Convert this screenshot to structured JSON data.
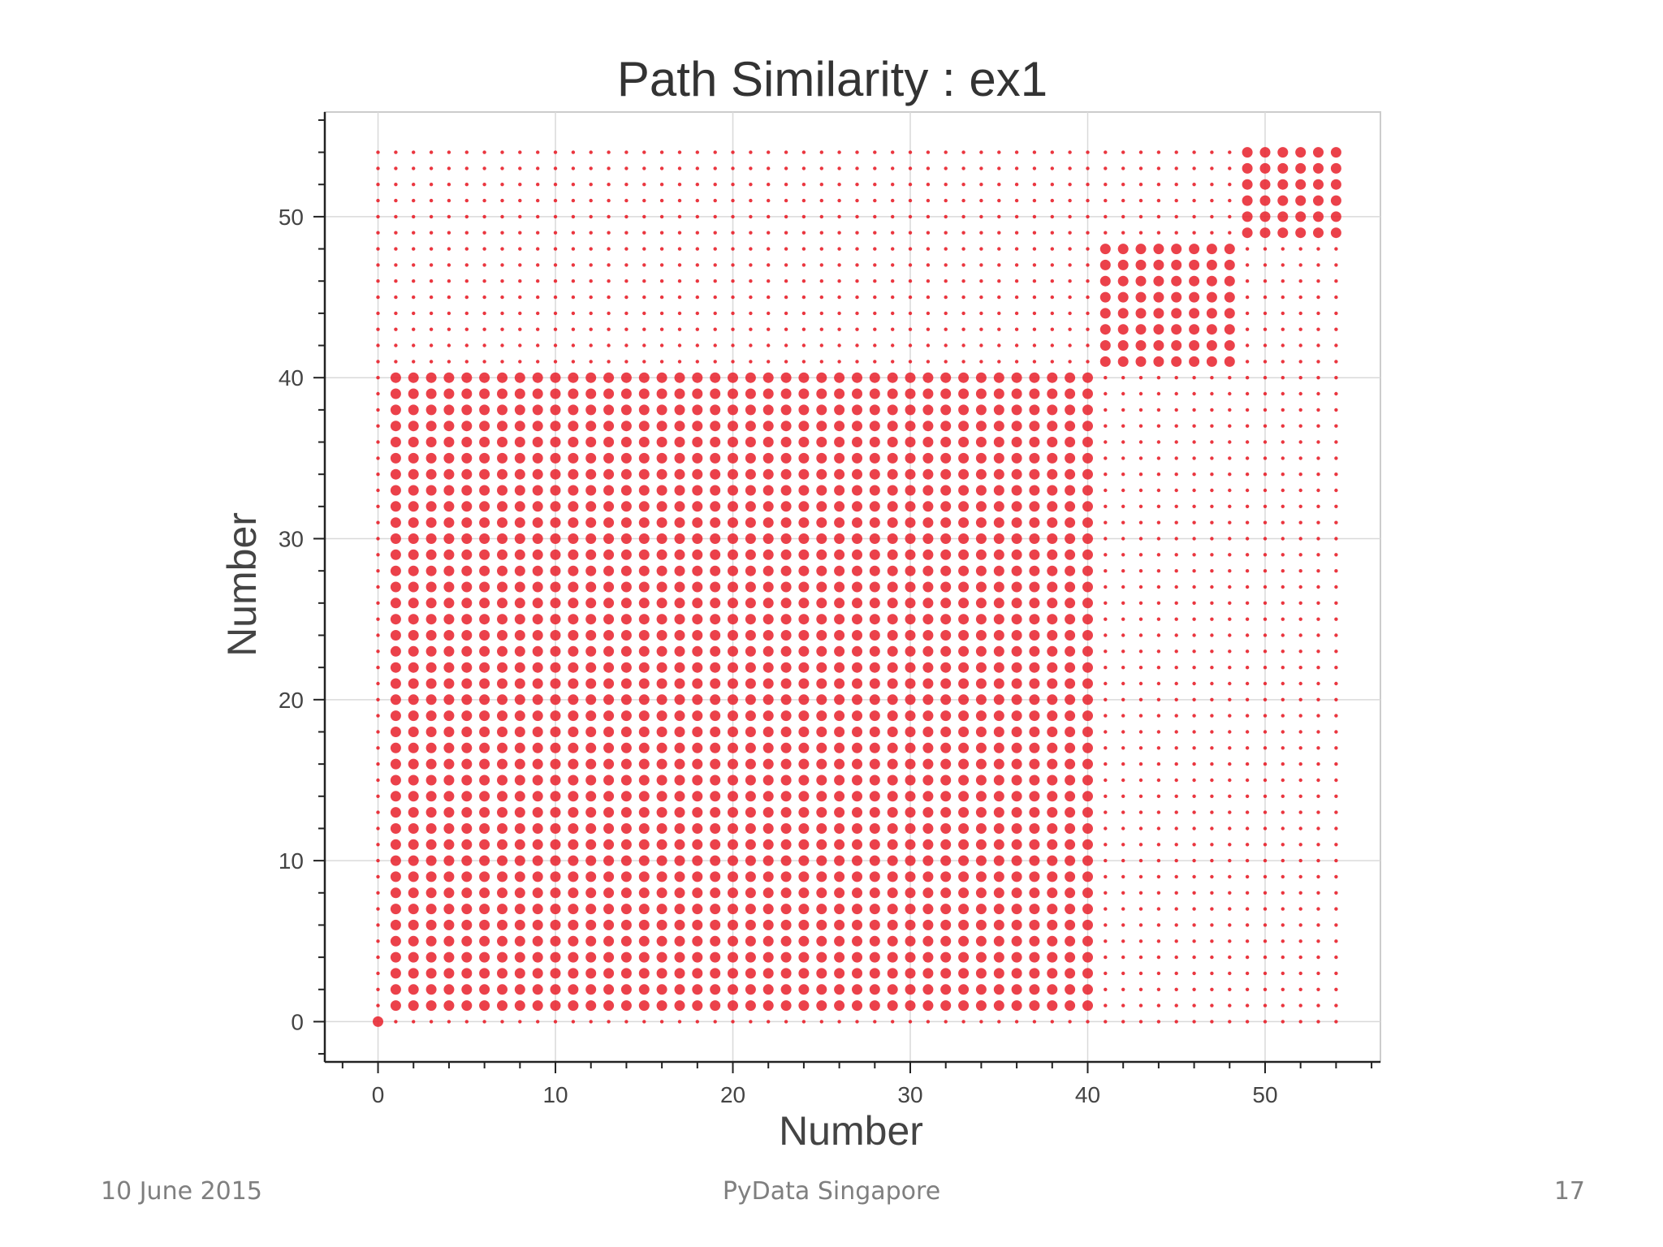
{
  "slide": {
    "footer_date": "10 June 2015",
    "footer_center": "PyData Singapore",
    "page_number": "17"
  },
  "chart_data": {
    "type": "scatter",
    "title": "Path Similarity : ex1",
    "xlabel": "Number",
    "ylabel": "Number",
    "xlim": [
      -3,
      56.5
    ],
    "ylim": [
      -2.5,
      56.5
    ],
    "x_ticks": [
      0,
      10,
      20,
      30,
      40,
      50
    ],
    "y_ticks": [
      0,
      10,
      20,
      30,
      40,
      50
    ],
    "x_tick_labels": [
      "0",
      "10",
      "20",
      "30",
      "40",
      "50"
    ],
    "y_tick_labels": [
      "0",
      "10",
      "20",
      "30",
      "40",
      "50"
    ],
    "grid": true,
    "legend": "none",
    "marker_color": "#e8202a",
    "grid_points": {
      "x_range": [
        0,
        54
      ],
      "y_range": [
        0,
        54
      ]
    },
    "description_of_sizes": null,
    "clusters": [
      {
        "x_range": [
          0,
          40
        ],
        "y_range": [
          0,
          40
        ],
        "similarity": 1.0
      },
      {
        "x_range": [
          41,
          48
        ],
        "y_range": [
          41,
          48
        ],
        "similarity": 1.0
      },
      {
        "x_range": [
          49,
          54
        ],
        "y_range": [
          49,
          54
        ],
        "similarity": 1.0
      }
    ],
    "background_similarity": 0.15
  }
}
